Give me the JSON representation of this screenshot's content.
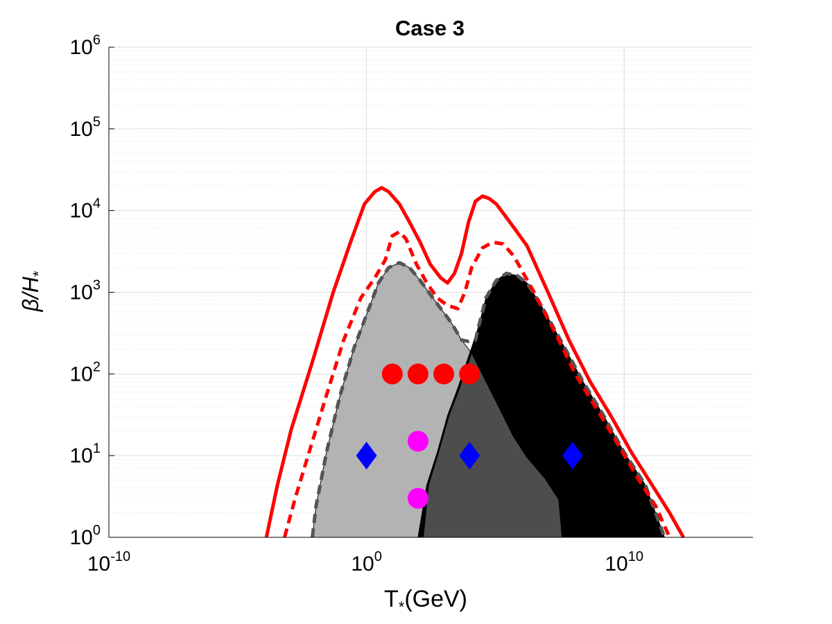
{
  "chart_data": {
    "type": "region",
    "title": "Case 3",
    "xlabel": {
      "base": "T",
      "sub": "*",
      "rest": "(GeV)"
    },
    "ylabel": {
      "base": "β/H",
      "sub": "*"
    },
    "xscale": "log",
    "yscale": "log",
    "xlim": [
      1e-10,
      1000000000000000.0
    ],
    "ylim": [
      1,
      1000000
    ],
    "xticks": [
      {
        "value": 1e-10,
        "label": [
          "10",
          "-10"
        ]
      },
      {
        "value": 1,
        "label": [
          "10",
          "0"
        ]
      },
      {
        "value": 10000000000,
        "label": [
          "10",
          "10"
        ]
      }
    ],
    "yticks": [
      {
        "value": 1,
        "label": [
          "10",
          "0"
        ]
      },
      {
        "value": 10,
        "label": [
          "10",
          "1"
        ]
      },
      {
        "value": 100,
        "label": [
          "10",
          "2"
        ]
      },
      {
        "value": 1000,
        "label": [
          "10",
          "3"
        ]
      },
      {
        "value": 10000,
        "label": [
          "10",
          "4"
        ]
      },
      {
        "value": 100000,
        "label": [
          "10",
          "5"
        ]
      },
      {
        "value": 1000000,
        "label": [
          "10",
          "6"
        ]
      }
    ],
    "grid": true,
    "minor_grid": true,
    "areas": [
      {
        "color": "#b3b3b3",
        "x": [
          0.0079,
          0.011,
          0.028,
          0.095,
          0.33,
          1.1,
          2.9,
          7.2,
          19,
          47,
          120,
          300,
          760,
          1900,
          4900,
          12000,
          43000,
          150000,
          510000,
          1700000,
          8300000,
          29000000,
          39000000
        ],
        "y": [
          1,
          2.4,
          11,
          55,
          210,
          570,
          1300,
          2000,
          2300,
          2000,
          1400,
          940,
          630,
          430,
          260,
          180,
          81,
          37,
          17,
          9.5,
          5.3,
          2.9,
          1
        ]
      },
      {
        "color": "#000000",
        "x": [
          100,
          220,
          560,
          1400,
          3500,
          12000,
          23000,
          43000,
          110000,
          270000,
          690000,
          1700000,
          6000000,
          39000000,
          250000000,
          1600000000,
          10000000000,
          66000000000,
          370000000000
        ],
        "y": [
          1,
          4.4,
          11,
          31,
          67,
          210,
          390,
          850,
          1400,
          1700,
          1600,
          1300,
          690,
          240,
          81,
          31,
          11,
          4.4,
          1
        ]
      },
      {
        "color": "#4d4d4d",
        "x": [
          160,
          260,
          630,
          1600,
          4100,
          12000,
          43000,
          150000,
          510000,
          1700000,
          8300000,
          29000000,
          39000000
        ],
        "y": [
          1,
          4.4,
          11,
          31,
          67,
          180,
          81,
          37,
          17,
          9.5,
          5.3,
          2.9,
          1
        ]
      }
    ],
    "lines": [
      {
        "color": "#555555",
        "dashed": true,
        "x": [
          0.0079,
          0.011,
          0.028,
          0.095,
          0.33,
          1.1,
          2.9,
          7.2,
          19,
          47,
          120,
          300,
          760,
          1900,
          4900,
          9100,
          17000,
          23000,
          43000,
          110000,
          270000,
          690000,
          1700000,
          6000000,
          39000000,
          250000000,
          1600000000,
          10000000000,
          66000000000,
          370000000000
        ],
        "y": [
          1,
          2.4,
          11,
          55,
          210,
          570,
          1300,
          2000,
          2300,
          2000,
          1400,
          940,
          630,
          430,
          260,
          250,
          260,
          390,
          850,
          1400,
          1700,
          1600,
          1300,
          690,
          240,
          81,
          31,
          11,
          4.4,
          1
        ]
      },
      {
        "color": "#ff0000",
        "dashed": true,
        "x": [
          0.00066,
          0.0017,
          0.0059,
          0.028,
          0.13,
          0.6,
          2.1,
          5.4,
          10,
          19,
          34,
          87,
          220,
          560,
          1400,
          3500,
          6600,
          12000,
          32000,
          79000,
          200000,
          510000,
          3200000,
          21000000,
          130000000,
          870000000,
          5500000000,
          35000000000,
          170000000000,
          580000000000
        ],
        "y": [
          1,
          3,
          11,
          55,
          260,
          850,
          1500,
          2500,
          4900,
          5500,
          4500,
          2200,
          1300,
          850,
          690,
          630,
          1000,
          2000,
          3500,
          4100,
          3900,
          2800,
          1000,
          320,
          98,
          37,
          14,
          5.2,
          2.4,
          1
        ]
      },
      {
        "color": "#ff0000",
        "dashed": false,
        "x": [
          0.00013,
          0.00035,
          0.0012,
          0.0079,
          0.051,
          0.24,
          0.83,
          2.1,
          3.9,
          7.2,
          19,
          47,
          120,
          300,
          760,
          1400,
          2600,
          4900,
          9100,
          17000,
          32000,
          58000,
          110000,
          370000,
          1700000,
          11000000,
          72000000,
          470000000,
          3000000000,
          19000000000,
          120000000000,
          580000000000,
          2000000000000
        ],
        "y": [
          1,
          4.4,
          21,
          140,
          1000,
          4100,
          12000,
          17000,
          19000,
          17000,
          12000,
          7200,
          4100,
          2200,
          1500,
          1300,
          1700,
          3000,
          7200,
          13000,
          15000,
          14000,
          12000,
          7200,
          3700,
          1000,
          260,
          81,
          31,
          11,
          4.4,
          2,
          1
        ]
      }
    ],
    "points": [
      {
        "color": "#ff0000",
        "marker": "circle",
        "x": [
          10,
          100,
          1000,
          10000
        ],
        "y": [
          100,
          100,
          100,
          100
        ]
      },
      {
        "color": "#ff00ff",
        "marker": "circle",
        "x": [
          100,
          100
        ],
        "y": [
          15,
          3
        ]
      },
      {
        "color": "#0000ff",
        "marker": "diamond",
        "x": [
          1,
          10000,
          100000000
        ],
        "y": [
          10,
          10,
          10
        ]
      }
    ]
  }
}
